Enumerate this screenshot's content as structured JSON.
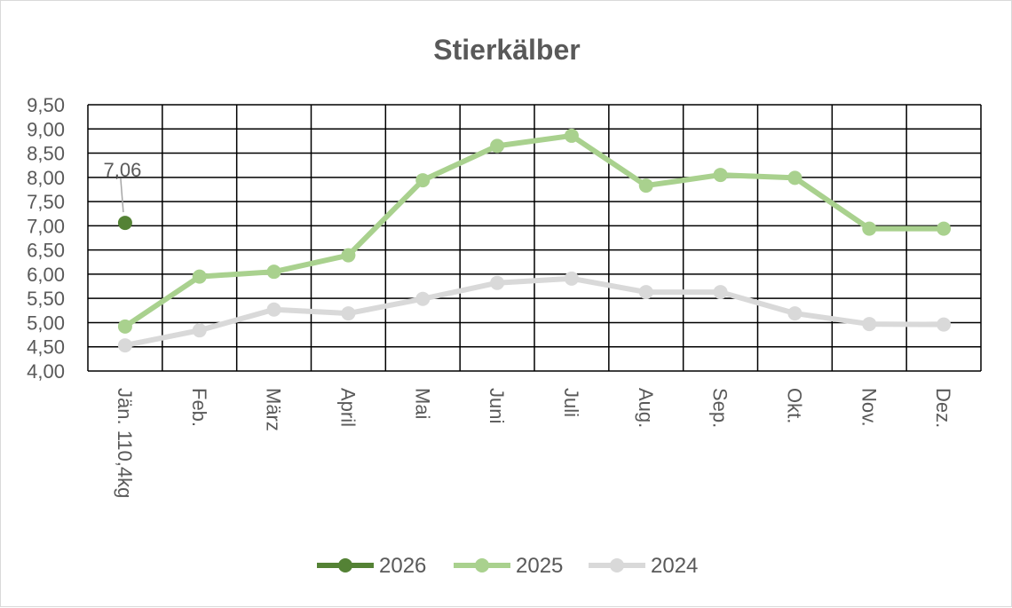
{
  "chart_data": {
    "type": "line",
    "title": "Stierkälber",
    "xlabel": "",
    "ylabel": "",
    "categories": [
      "Jän.  110,4kg",
      "Feb.",
      "März",
      "April",
      "Mai",
      "Juni",
      "Juli",
      "Aug.",
      "Sep.",
      "Okt.",
      "Nov.",
      "Dez."
    ],
    "ylim": [
      4.0,
      9.5
    ],
    "yticks": [
      "4,00",
      "4,50",
      "5,00",
      "5,50",
      "6,00",
      "6,50",
      "7,00",
      "7,50",
      "8,00",
      "8,50",
      "9,00",
      "9,50"
    ],
    "grid": true,
    "legend_position": "bottom",
    "series": [
      {
        "name": "2026",
        "color": "#548235",
        "values": [
          7.06,
          null,
          null,
          null,
          null,
          null,
          null,
          null,
          null,
          null,
          null,
          null
        ]
      },
      {
        "name": "2025",
        "color": "#a9d18e",
        "values": [
          4.92,
          5.95,
          6.05,
          6.39,
          7.94,
          8.65,
          8.86,
          7.83,
          8.05,
          7.99,
          6.94,
          6.94
        ]
      },
      {
        "name": "2024",
        "color": "#d9d9d9",
        "values": [
          4.53,
          4.84,
          5.27,
          5.19,
          5.49,
          5.82,
          5.91,
          5.63,
          5.63,
          5.19,
          4.97,
          4.96
        ]
      }
    ],
    "annotations": [
      {
        "series": "2026",
        "index": 0,
        "text": "7,06"
      }
    ]
  }
}
